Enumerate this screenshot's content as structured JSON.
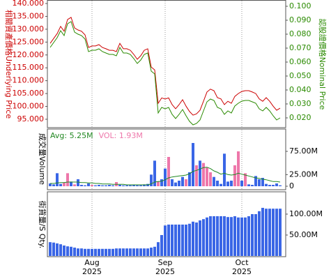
{
  "chart_data": [
    {
      "type": "line",
      "y_label": "相關資產價格Underlying Price",
      "y2_label": "認股證價格Nominal Price",
      "ylim": [
        91.74,
        141.36
      ],
      "yticks": [
        {
          "value": 140,
          "label": "140.000"
        },
        {
          "value": 135,
          "label": "135.000"
        },
        {
          "value": 130,
          "label": "130.000"
        },
        {
          "value": 125,
          "label": "125.000"
        },
        {
          "value": 120,
          "label": "120.000"
        },
        {
          "value": 115,
          "label": "115.000"
        },
        {
          "value": 110,
          "label": "110.000"
        },
        {
          "value": 105,
          "label": "105.000"
        },
        {
          "value": 100,
          "label": "100.000"
        },
        {
          "value": 95,
          "label": "95.000"
        }
      ],
      "y2lim": [
        0.013,
        0.1045
      ],
      "y2ticks": [
        {
          "value": 0.1,
          "label": "0.100"
        },
        {
          "value": 0.09,
          "label": "0.090"
        },
        {
          "value": 0.08,
          "label": "0.080"
        },
        {
          "value": 0.07,
          "label": "0.070"
        },
        {
          "value": 0.06,
          "label": "0.060"
        },
        {
          "value": 0.05,
          "label": "0.050"
        },
        {
          "value": 0.04,
          "label": "0.040"
        },
        {
          "value": 0.03,
          "label": "0.030"
        },
        {
          "value": 0.02,
          "label": "0.020"
        }
      ],
      "series": [
        {
          "color": "#cc0000",
          "axis": "y",
          "values": [
            124.5,
            126.4,
            128.3,
            131.1,
            129.2,
            133.8,
            134.6,
            130.5,
            129.7,
            129.2,
            127.8,
            122.9,
            123.5,
            123.5,
            124.0,
            122.9,
            122.4,
            121.8,
            121.8,
            121.3,
            124.5,
            122.4,
            122.4,
            121.8,
            120.2,
            118.3,
            119.7,
            121.8,
            122.4,
            115.3,
            114.2,
            101.2,
            103.3,
            102.9,
            103.3,
            100.7,
            99.1,
            100.7,
            102.6,
            100.1,
            98.0,
            96.6,
            97.1,
            98.5,
            102.0,
            105.6,
            106.7,
            106.1,
            103.4,
            102.9,
            100.7,
            102.0,
            101.2,
            103.9,
            105.0,
            105.8,
            106.1,
            106.1,
            105.6,
            105.0,
            102.9,
            102.0,
            103.4,
            102.0,
            100.1,
            98.5,
            99.3
          ]
        },
        {
          "color": "#2a8a00",
          "axis": "y2",
          "values": [
            0.0705,
            0.074,
            0.0775,
            0.0825,
            0.079,
            0.0875,
            0.089,
            0.0815,
            0.08,
            0.079,
            0.0765,
            0.0675,
            0.0685,
            0.0685,
            0.0695,
            0.0675,
            0.0665,
            0.0655,
            0.0655,
            0.0645,
            0.0705,
            0.0665,
            0.0665,
            0.0655,
            0.0625,
            0.059,
            0.0615,
            0.0655,
            0.0665,
            0.0535,
            0.0515,
            0.0235,
            0.0275,
            0.0265,
            0.0275,
            0.0225,
            0.0195,
            0.0225,
            0.026,
            0.0215,
            0.0175,
            0.015,
            0.016,
            0.0185,
            0.025,
            0.0315,
            0.0335,
            0.0325,
            0.0275,
            0.0265,
            0.0225,
            0.025,
            0.0235,
            0.0285,
            0.0305,
            0.032,
            0.0325,
            0.0325,
            0.0315,
            0.0305,
            0.0265,
            0.025,
            0.0275,
            0.025,
            0.0215,
            0.0185,
            0.02
          ]
        }
      ]
    },
    {
      "type": "bar",
      "y_label": "成交量Volume",
      "ylim": [
        -7.5,
        123
      ],
      "yticks": [
        0,
        {
          "value": 25,
          "label": "25.00M"
        },
        {
          "value": 75,
          "label": "75.00M"
        }
      ],
      "series": [
        {
          "name": "Avg: 5.25M",
          "type": "line",
          "color": "#228822",
          "values": [
            6,
            6,
            7,
            8,
            8,
            9,
            9,
            9,
            9,
            8,
            8,
            7,
            7,
            6,
            6,
            5,
            5,
            5,
            4,
            4,
            4,
            4,
            3,
            3,
            3,
            3,
            3,
            3,
            3,
            5,
            9,
            10,
            11,
            14,
            18,
            20,
            21,
            22,
            23,
            24,
            27,
            32,
            34,
            37,
            40,
            41,
            38,
            33,
            30,
            26,
            28,
            25,
            24,
            25,
            28,
            26,
            24,
            22,
            20,
            18,
            17,
            15,
            14,
            12,
            10,
            10,
            9
          ]
        },
        {
          "name": "VOL: 1.93M",
          "type": "bar",
          "color": "#ee77aa",
          "bar_colors": [
            "#3a66e6",
            "#3a66e6",
            "#3a66e6",
            "#3a66e6",
            "#ee77aa",
            "#ee77aa",
            "#3a66e6",
            "#ee77aa",
            "#3a66e6",
            "#3a66e6",
            "#3a66e6",
            "#3a66e6",
            "#ee77aa",
            "#3a66e6",
            "#3a66e6",
            "#3a66e6",
            "#3a66e6",
            "#3a66e6",
            "#3a66e6",
            "#ee77aa",
            "#3a66e6",
            "#3a66e6",
            "#3a66e6",
            "#3a66e6",
            "#3a66e6",
            "#3a66e6",
            "#3a66e6",
            "#3a66e6",
            "#3a66e6",
            "#3a66e6",
            "#3a66e6",
            "#ee77aa",
            "#3a66e6",
            "#3a66e6",
            "#ee77aa",
            "#3a66e6",
            "#3a66e6",
            "#3a66e6",
            "#3a66e6",
            "#ee77aa",
            "#3a66e6",
            "#3a66e6",
            "#ee77aa",
            "#3a66e6",
            "#ee77aa",
            "#ee77aa",
            "#ee77aa",
            "#3a66e6",
            "#3a66e6",
            "#3a66e6",
            "#3a66e6",
            "#3a66e6",
            "#3a66e6",
            "#ee77aa",
            "#ee77aa",
            "#3a66e6",
            "#ee77aa",
            "#3a66e6",
            "#3a66e6",
            "#3a66e6",
            "#3a66e6",
            "#3a66e6",
            "#3a66e6",
            "#3a66e6",
            "#3a66e6",
            "#3a66e6",
            "#3a66e6"
          ],
          "values": [
            6,
            4,
            28,
            5,
            8,
            28,
            10,
            4,
            15,
            3,
            2,
            6,
            3,
            2,
            3,
            2,
            2,
            3,
            2,
            9,
            3,
            2,
            2,
            2,
            3,
            2,
            2,
            4,
            5,
            25,
            55,
            10,
            15,
            38,
            63,
            15,
            8,
            12,
            20,
            15,
            30,
            93,
            45,
            55,
            50,
            40,
            30,
            20,
            12,
            5,
            70,
            10,
            12,
            45,
            75,
            12,
            28,
            4,
            3,
            22,
            15,
            18,
            5,
            3,
            3,
            6,
            2
          ]
        }
      ]
    },
    {
      "type": "bar",
      "y_label": "街貨量/S Qty.",
      "ylim": [
        -1.7,
        153.3
      ],
      "yticks": [
        {
          "value": 50,
          "label": "50.00M"
        },
        {
          "value": 100,
          "label": "100.00M"
        }
      ],
      "color": "#3a66e6",
      "categories": [
        null,
        null,
        null,
        null,
        null,
        null,
        null,
        null,
        null,
        null,
        null,
        null,
        "Aug 2025",
        null,
        null,
        null,
        null,
        null,
        null,
        null,
        null,
        null,
        null,
        null,
        null,
        null,
        null,
        null,
        null,
        null,
        null,
        null,
        null,
        "Sep 2025",
        null,
        null,
        null,
        null,
        null,
        null,
        null,
        null,
        null,
        null,
        null,
        null,
        null,
        null,
        null,
        null,
        null,
        null,
        null,
        null,
        null,
        "Oct 2025",
        null,
        null,
        null,
        null,
        null,
        null,
        null,
        null,
        null,
        null,
        null
      ],
      "values": [
        33,
        32,
        30,
        28,
        25,
        23,
        22,
        20,
        18,
        18,
        17,
        17,
        17,
        17,
        17,
        17,
        17,
        17,
        17,
        18,
        18,
        18,
        18,
        18,
        18,
        18,
        18,
        18,
        18,
        20,
        22,
        33,
        50,
        73,
        75,
        75,
        75,
        75,
        75,
        75,
        77,
        82,
        80,
        85,
        88,
        92,
        95,
        95,
        95,
        95,
        95,
        93,
        93,
        95,
        92,
        92,
        92,
        95,
        100,
        100,
        107,
        115,
        113,
        113,
        113,
        113,
        113
      ]
    }
  ]
}
